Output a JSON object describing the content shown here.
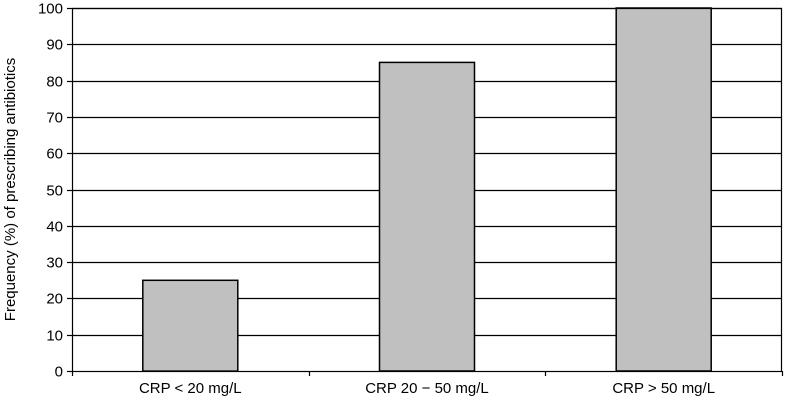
{
  "chart_data": {
    "type": "bar",
    "title": "",
    "xlabel": "",
    "ylabel": "Frequency (%) of prescribing antibiotics",
    "categories": [
      "CRP < 20 mg/L",
      "CRP 20 − 50 mg/L",
      "CRP > 50 mg/L"
    ],
    "values": [
      25,
      85,
      100
    ],
    "ylim": [
      0,
      100
    ],
    "yticks": [
      0,
      10,
      20,
      30,
      40,
      50,
      60,
      70,
      80,
      90,
      100
    ],
    "grid": true,
    "legend": "none",
    "colors": {
      "bar_fill": "#c0c0c0",
      "bar_stroke": "#000000",
      "grid": "#000000",
      "axis": "#000000"
    }
  }
}
